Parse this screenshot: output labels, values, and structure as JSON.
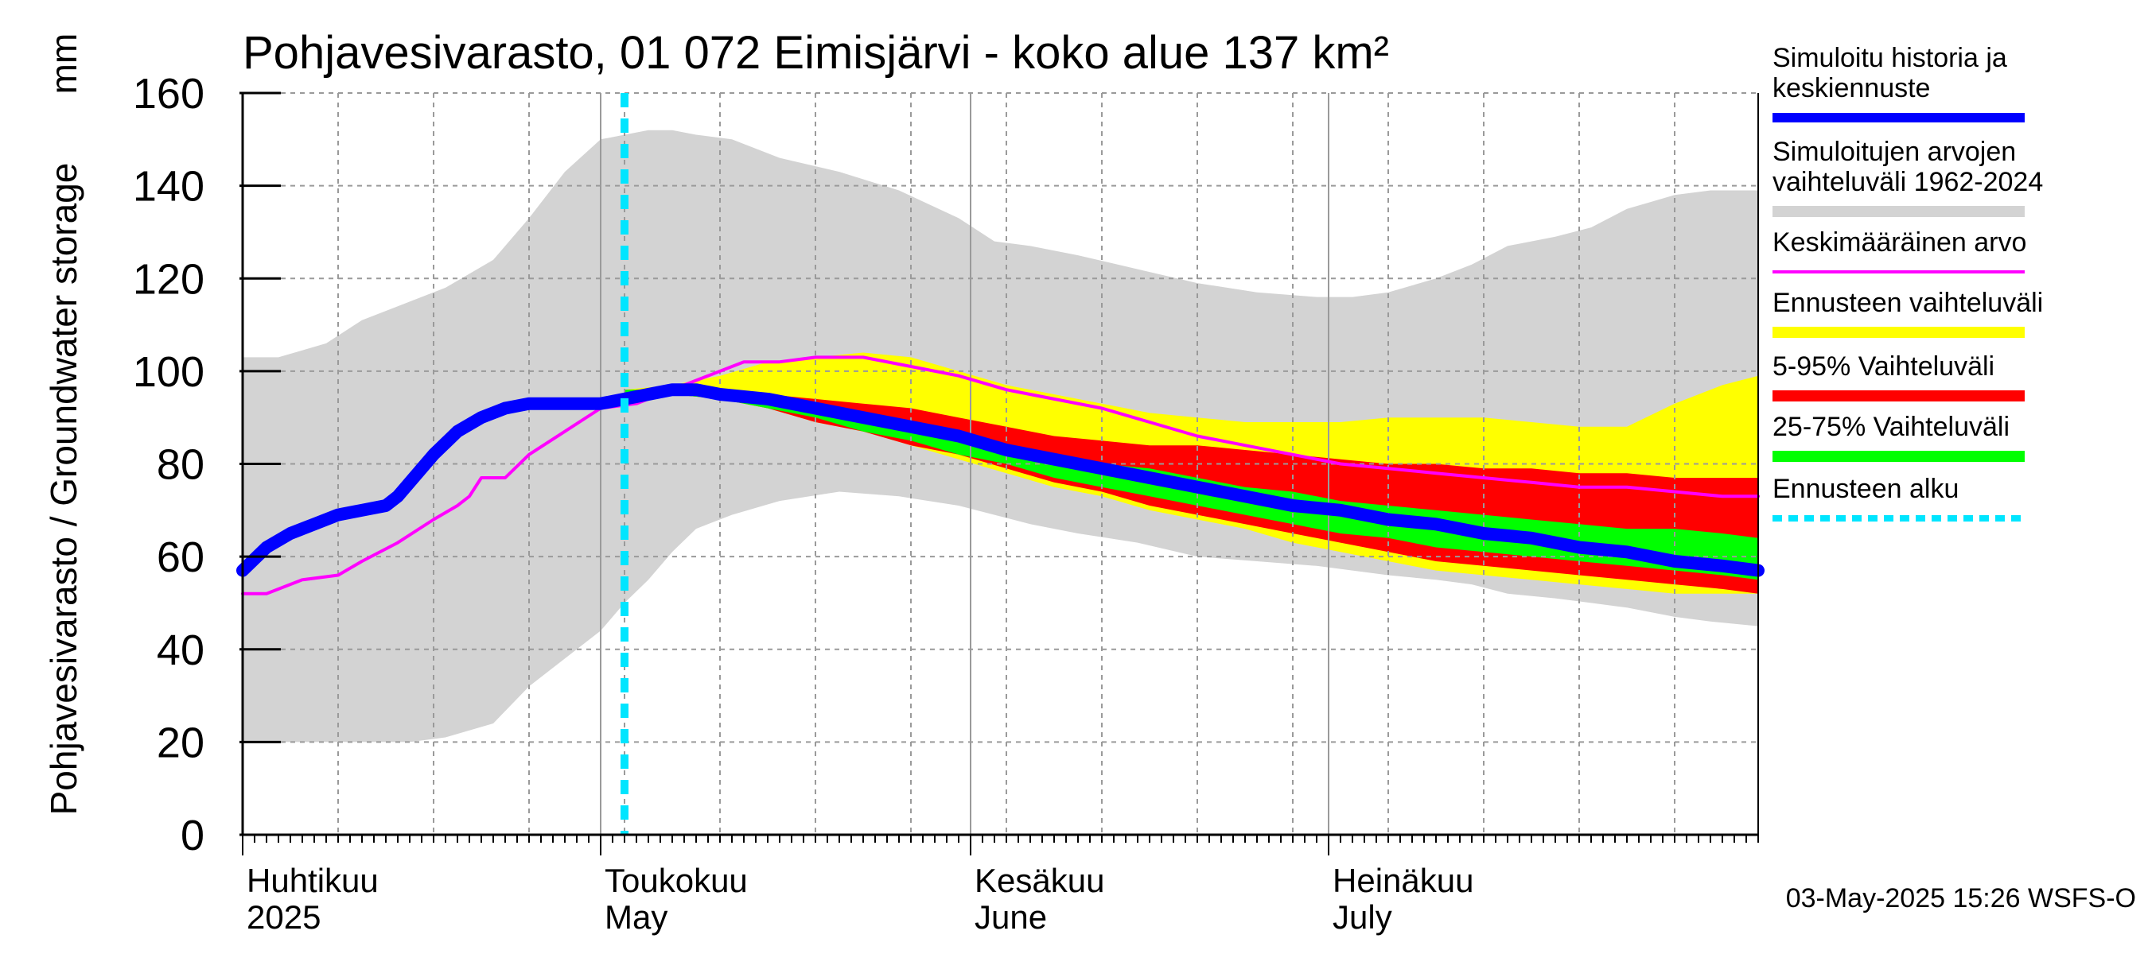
{
  "chart_data": {
    "type": "area",
    "title": "Pohjavesivarasto, 01 072 Eimisjärvi - koko alue 137 km²",
    "ylabel": "Pohjavesivarasto / Groundwater storage",
    "yunit": "mm",
    "ylim": [
      0,
      160
    ],
    "yticks": [
      0,
      20,
      40,
      60,
      80,
      100,
      120,
      140,
      160
    ],
    "xlim_days": [
      0,
      127
    ],
    "month_labels": [
      {
        "day": 0,
        "line1": "Huhtikuu",
        "line2": "2025"
      },
      {
        "day": 30,
        "line1": "Toukokuu",
        "line2": "May"
      },
      {
        "day": 61,
        "line1": "Kesäkuu",
        "line2": "June"
      },
      {
        "day": 91,
        "line1": "Heinäkuu",
        "line2": "July"
      }
    ],
    "month_starts": [
      0,
      30,
      61,
      91
    ],
    "forecast_start_day": 32,
    "timestamp": "03-May-2025 15:26 WSFS-O",
    "colors": {
      "history_range": "#d3d3d3",
      "mean": "#ff00ff",
      "forecast_range": "#ffff00",
      "p5_95": "#ff0000",
      "p25_75": "#00ff00",
      "median": "#0000ff",
      "forecast_start": "#00e5ff"
    },
    "series": {
      "hist_range": {
        "x": [
          0,
          3,
          7,
          10,
          14,
          17,
          21,
          24,
          27,
          30,
          32,
          34,
          36,
          38,
          41,
          45,
          50,
          55,
          60,
          63,
          66,
          70,
          75,
          80,
          85,
          90,
          93,
          96,
          100,
          103,
          106,
          110,
          113,
          116,
          120,
          123,
          127
        ],
        "low": [
          20,
          20,
          20,
          20,
          20,
          21,
          24,
          32,
          38,
          44,
          50,
          55,
          61,
          66,
          69,
          72,
          74,
          73,
          71,
          69,
          67,
          65,
          63,
          60,
          59,
          58,
          57,
          56,
          55,
          54,
          52,
          51,
          50,
          49,
          47,
          46,
          45
        ],
        "high": [
          103,
          103,
          106,
          111,
          115,
          118,
          124,
          133,
          143,
          150,
          151,
          152,
          152,
          151,
          150,
          146,
          143,
          139,
          133,
          128,
          127,
          125,
          122,
          119,
          117,
          116,
          116,
          117,
          120,
          123,
          127,
          129,
          131,
          135,
          138,
          139,
          139
        ]
      },
      "forecast_range": {
        "x": [
          32,
          36,
          40,
          44,
          48,
          52,
          56,
          60,
          64,
          68,
          72,
          76,
          80,
          84,
          88,
          92,
          96,
          100,
          104,
          108,
          112,
          116,
          120,
          124,
          127
        ],
        "low": [
          95,
          95,
          94,
          92,
          89,
          87,
          84,
          81,
          78,
          75,
          73,
          70,
          68,
          66,
          63,
          61,
          59,
          57,
          56,
          55,
          54,
          53,
          52,
          52,
          52
        ],
        "high": [
          96,
          97,
          99,
          102,
          103,
          104,
          103,
          100,
          97,
          95,
          93,
          91,
          90,
          89,
          89,
          89,
          90,
          90,
          90,
          89,
          88,
          88,
          93,
          97,
          99
        ]
      },
      "p5_95": {
        "x": [
          32,
          36,
          40,
          44,
          48,
          52,
          56,
          60,
          64,
          68,
          72,
          76,
          80,
          84,
          88,
          92,
          96,
          100,
          104,
          108,
          112,
          116,
          120,
          124,
          127
        ],
        "low": [
          95,
          95,
          94,
          92,
          89,
          87,
          84,
          82,
          79,
          76,
          74,
          71,
          69,
          67,
          65,
          63,
          61,
          59,
          58,
          57,
          56,
          55,
          54,
          53,
          52
        ],
        "high": [
          96,
          96,
          96,
          95,
          94,
          93,
          92,
          90,
          88,
          86,
          85,
          84,
          84,
          83,
          82,
          81,
          80,
          80,
          79,
          79,
          78,
          78,
          77,
          77,
          77
        ]
      },
      "p25_75": {
        "x": [
          32,
          36,
          40,
          44,
          48,
          52,
          56,
          60,
          64,
          68,
          72,
          76,
          80,
          84,
          88,
          92,
          96,
          100,
          104,
          108,
          112,
          116,
          120,
          124,
          127
        ],
        "low": [
          95,
          95,
          94,
          92,
          90,
          87,
          85,
          82,
          80,
          77,
          75,
          73,
          71,
          69,
          67,
          65,
          64,
          62,
          61,
          60,
          59,
          58,
          57,
          56,
          55
        ],
        "high": [
          96,
          96,
          95,
          94,
          92,
          90,
          88,
          86,
          84,
          82,
          80,
          79,
          77,
          75,
          74,
          72,
          71,
          70,
          69,
          68,
          67,
          66,
          66,
          65,
          64
        ]
      },
      "mean": {
        "x": [
          0,
          2,
          5,
          8,
          10,
          13,
          16,
          18,
          19,
          20,
          22,
          24,
          27,
          30,
          33,
          36,
          38,
          40,
          42,
          45,
          48,
          52,
          56,
          60,
          64,
          68,
          72,
          76,
          80,
          84,
          88,
          92,
          96,
          100,
          104,
          108,
          112,
          116,
          120,
          124,
          127
        ],
        "y": [
          52,
          52,
          55,
          56,
          59,
          63,
          68,
          71,
          73,
          77,
          77,
          82,
          87,
          92,
          93,
          96,
          98,
          100,
          102,
          102,
          103,
          103,
          101,
          99,
          96,
          94,
          92,
          89,
          86,
          84,
          82,
          80,
          79,
          78,
          77,
          76,
          75,
          75,
          74,
          73,
          73
        ]
      },
      "median": {
        "x": [
          0,
          2,
          4,
          6,
          8,
          10,
          12,
          13,
          14,
          16,
          18,
          20,
          22,
          24,
          27,
          30,
          32,
          34,
          36,
          38,
          40,
          44,
          48,
          52,
          56,
          60,
          64,
          68,
          72,
          76,
          80,
          84,
          88,
          92,
          96,
          100,
          104,
          108,
          112,
          116,
          120,
          124,
          127
        ],
        "y": [
          57,
          62,
          65,
          67,
          69,
          70,
          71,
          73,
          76,
          82,
          87,
          90,
          92,
          93,
          93,
          93,
          94,
          95,
          96,
          96,
          95,
          94,
          92,
          90,
          88,
          86,
          83,
          81,
          79,
          77,
          75,
          73,
          71,
          70,
          68,
          67,
          65,
          64,
          62,
          61,
          59,
          58,
          57
        ]
      }
    },
    "legend": [
      {
        "label": "Simuloitu historia ja keskiennuste",
        "lines": [
          "Simuloitu historia ja",
          "keskiennuste"
        ],
        "color": "#0000ff",
        "kind": "thick"
      },
      {
        "label": "Simuloitujen arvojen vaihteluväli 1962-2024",
        "lines": [
          "Simuloitujen arvojen",
          "vaihteluväli 1962-2024"
        ],
        "color": "#d3d3d3",
        "kind": "band"
      },
      {
        "label": "Keskimääräinen arvo",
        "lines": [
          "Keskimääräinen arvo"
        ],
        "color": "#ff00ff",
        "kind": "thin"
      },
      {
        "label": "Ennusteen vaihteluväli",
        "lines": [
          "Ennusteen vaihteluväli"
        ],
        "color": "#ffff00",
        "kind": "band"
      },
      {
        "label": "5-95% Vaihteluväli",
        "lines": [
          "5-95% Vaihteluväli"
        ],
        "color": "#ff0000",
        "kind": "band"
      },
      {
        "label": "25-75% Vaihteluväli",
        "lines": [
          "25-75% Vaihteluväli"
        ],
        "color": "#00ff00",
        "kind": "band"
      },
      {
        "label": "Ennusteen alku",
        "lines": [
          "Ennusteen alku"
        ],
        "color": "#00e5ff",
        "kind": "dashed"
      }
    ]
  }
}
